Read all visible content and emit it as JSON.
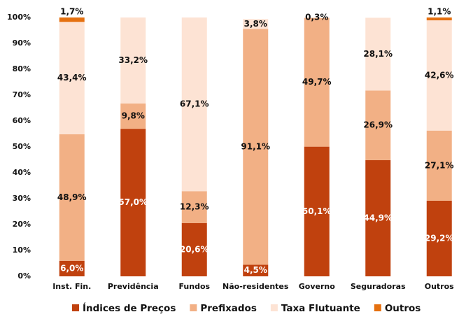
{
  "chart_data": {
    "type": "stacked_bar",
    "categories": [
      "Inst. Fin.",
      "Previdência",
      "Fundos",
      "Não-residentes",
      "Governo",
      "Seguradoras",
      "Outros"
    ],
    "series": [
      {
        "name": "Índices de Preços",
        "color": "#c0410e",
        "values": [
          6.0,
          57.0,
          20.6,
          4.5,
          50.1,
          44.9,
          29.2
        ],
        "value_labels": [
          "6,0%",
          "57,0%",
          "20,6%",
          "4,5%",
          "50,1%",
          "44,9%",
          "29,2%"
        ]
      },
      {
        "name": "Prefixados",
        "color": "#f2b085",
        "values": [
          48.9,
          9.8,
          12.3,
          91.1,
          49.7,
          26.9,
          27.1
        ],
        "value_labels": [
          "48,9%",
          "9,8%",
          "12,3%",
          "91,1%",
          "49,7%",
          "26,9%",
          "27,1%"
        ]
      },
      {
        "name": "Taxa Flutuante",
        "color": "#fde3d4",
        "values": [
          43.4,
          33.2,
          67.1,
          3.8,
          0.3,
          28.1,
          42.6
        ],
        "value_labels": [
          "43,4%",
          "33,2%",
          "67,1%",
          "3,8%",
          "0,3%",
          "28,1%",
          "42,6%"
        ]
      },
      {
        "name": "Outros",
        "color": "#e5700f",
        "values": [
          1.7,
          null,
          null,
          null,
          null,
          null,
          1.1
        ],
        "value_labels": [
          "1,7%",
          null,
          null,
          null,
          null,
          null,
          "1,1%"
        ]
      }
    ],
    "ylim": [
      0,
      100
    ],
    "yticks": [
      {
        "value": 0,
        "label": "0%"
      },
      {
        "value": 10,
        "label": "10%"
      },
      {
        "value": 20,
        "label": "20%"
      },
      {
        "value": 30,
        "label": "30%"
      },
      {
        "value": 40,
        "label": "40%"
      },
      {
        "value": 50,
        "label": "50%"
      },
      {
        "value": 60,
        "label": "60%"
      },
      {
        "value": 70,
        "label": "70%"
      },
      {
        "value": 80,
        "label": "80%"
      },
      {
        "value": 90,
        "label": "90%"
      },
      {
        "value": 100,
        "label": "100%"
      }
    ],
    "legend": "bottom"
  }
}
